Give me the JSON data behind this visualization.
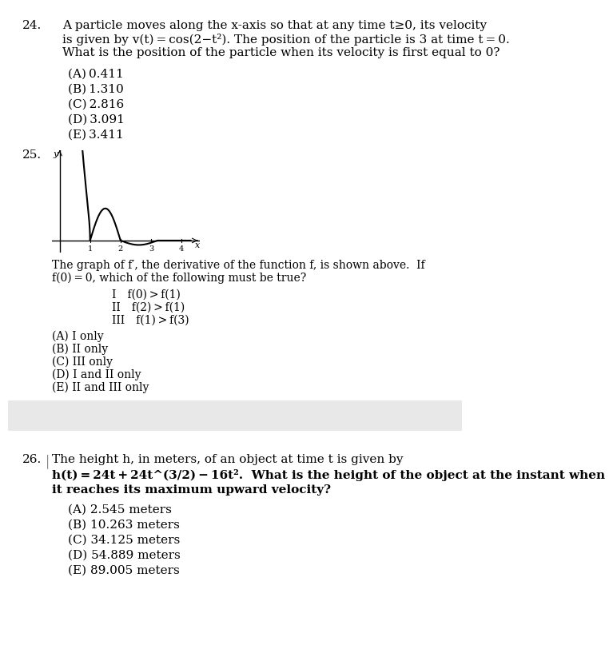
{
  "bg_color": "#ffffff",
  "separator_color": "#e8e8e8",
  "text_color": "#000000",
  "q24_num": "24.",
  "q24_line1": "A particle moves along the x-axis so that at any time t≥0, its velocity",
  "q24_line2": "is given by v(t) = cos(2−t²). The position of the particle is 3 at time t = 0.",
  "q24_line3": "What is the position of the particle when its velocity is first equal to 0?",
  "q24_choices": [
    "(A) 0.411",
    "(B) 1.310",
    "(C) 2.816",
    "(D) 3.091",
    "(E) 3.411"
  ],
  "q25_num": "25.",
  "q25_xticks": [
    1,
    2,
    3,
    4
  ],
  "q25_desc1": "The graph of f′, the derivative of the function f, is shown above.  If",
  "q25_desc2": "f(0) = 0, which of the following must be true?",
  "q25_roman": [
    "I  f(0) > f(1)",
    "II  f(2) > f(1)",
    "III  f(1) > f(3)"
  ],
  "q25_choices": [
    "(A) I only",
    "(B) II only",
    "(C) III only",
    "(D) I and II only",
    "(E) II and III only"
  ],
  "q26_num": "26.",
  "q26_line1": "The height h, in meters, of an object at time t is given by",
  "q26_line2": "h(t) = 24t + 24t^(3/2) − 16t².  What is the height of the object at the instant when",
  "q26_line3": "it reaches its maximum upward velocity?",
  "q26_choices": [
    "(A) 2.545 meters",
    "(B) 10.263 meters",
    "(C) 34.125 meters",
    "(D) 54.889 meters",
    "(E) 89.005 meters"
  ]
}
